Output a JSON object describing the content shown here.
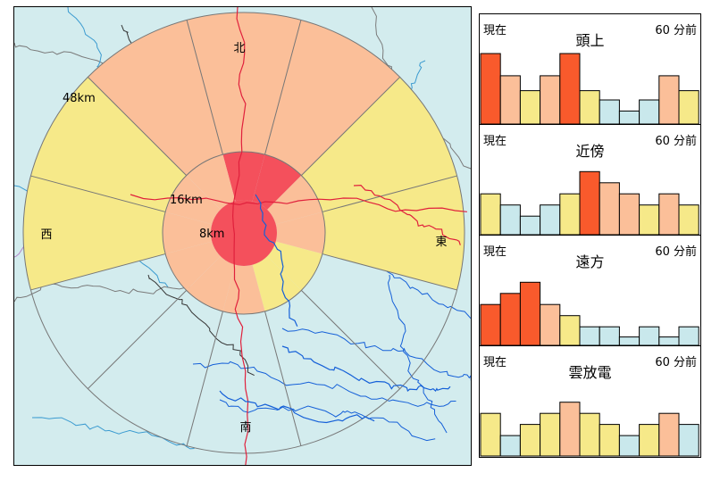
{
  "map": {
    "directions": {
      "north": "北",
      "south": "南",
      "east": "東",
      "west": "西"
    },
    "distances": {
      "outer": "48km",
      "middle": "16km",
      "inner": "8km"
    },
    "colors": {
      "sea": "#d3ecee",
      "red": "#f4505c",
      "orange": "#fbbf99",
      "yellow": "#f6e989",
      "river": "#1560d8",
      "road": "#e0203c",
      "border": "#000000"
    },
    "rings": {
      "outer": [
        "orange",
        "orange",
        "yellow",
        "yellow",
        "none",
        "none",
        "none",
        "none",
        "none",
        "yellow",
        "yellow",
        "orange"
      ],
      "middle": [
        "red",
        "red",
        "orange",
        "orange",
        "yellow",
        "yellow",
        "orange",
        "orange",
        "orange",
        "orange",
        "orange",
        "orange"
      ],
      "inner": "red"
    }
  },
  "panels": [
    {
      "now": "現在",
      "title": "頭上",
      "ago": "60 分前",
      "bars": [
        {
          "level": 0.76,
          "color": "red"
        },
        {
          "level": 0.52,
          "color": "orange"
        },
        {
          "level": 0.36,
          "color": "yellow"
        },
        {
          "level": 0.52,
          "color": "orange"
        },
        {
          "level": 0.76,
          "color": "red"
        },
        {
          "level": 0.36,
          "color": "yellow"
        },
        {
          "level": 0.26,
          "color": "blue"
        },
        {
          "level": 0.14,
          "color": "blue"
        },
        {
          "level": 0.26,
          "color": "blue"
        },
        {
          "level": 0.52,
          "color": "orange"
        },
        {
          "level": 0.36,
          "color": "yellow"
        }
      ]
    },
    {
      "now": "現在",
      "title": "近傍",
      "ago": "60 分前",
      "bars": [
        {
          "level": 0.44,
          "color": "yellow"
        },
        {
          "level": 0.32,
          "color": "blue"
        },
        {
          "level": 0.2,
          "color": "blue"
        },
        {
          "level": 0.32,
          "color": "blue"
        },
        {
          "level": 0.44,
          "color": "yellow"
        },
        {
          "level": 0.68,
          "color": "red"
        },
        {
          "level": 0.56,
          "color": "orange"
        },
        {
          "level": 0.44,
          "color": "orange"
        },
        {
          "level": 0.32,
          "color": "yellow"
        },
        {
          "level": 0.44,
          "color": "orange"
        },
        {
          "level": 0.32,
          "color": "yellow"
        }
      ]
    },
    {
      "now": "現在",
      "title": "遠方",
      "ago": "60 分前",
      "bars": [
        {
          "level": 0.44,
          "color": "red"
        },
        {
          "level": 0.56,
          "color": "red"
        },
        {
          "level": 0.68,
          "color": "red"
        },
        {
          "level": 0.44,
          "color": "orange"
        },
        {
          "level": 0.32,
          "color": "yellow"
        },
        {
          "level": 0.2,
          "color": "blue"
        },
        {
          "level": 0.2,
          "color": "blue"
        },
        {
          "level": 0.09,
          "color": "blue"
        },
        {
          "level": 0.2,
          "color": "blue"
        },
        {
          "level": 0.09,
          "color": "blue"
        },
        {
          "level": 0.2,
          "color": "blue"
        }
      ]
    },
    {
      "now": "現在",
      "title": "雲放電",
      "ago": "60 分前",
      "bars": [
        {
          "level": 0.46,
          "color": "yellow"
        },
        {
          "level": 0.22,
          "color": "blue"
        },
        {
          "level": 0.34,
          "color": "yellow"
        },
        {
          "level": 0.46,
          "color": "yellow"
        },
        {
          "level": 0.58,
          "color": "orange"
        },
        {
          "level": 0.46,
          "color": "yellow"
        },
        {
          "level": 0.34,
          "color": "yellow"
        },
        {
          "level": 0.22,
          "color": "blue"
        },
        {
          "level": 0.34,
          "color": "yellow"
        },
        {
          "level": 0.46,
          "color": "orange"
        },
        {
          "level": 0.34,
          "color": "blue"
        }
      ]
    }
  ],
  "bar_colors": {
    "red": "#f95a2c",
    "orange": "#fbbf99",
    "yellow": "#f6e989",
    "blue": "#c9e8ec"
  }
}
